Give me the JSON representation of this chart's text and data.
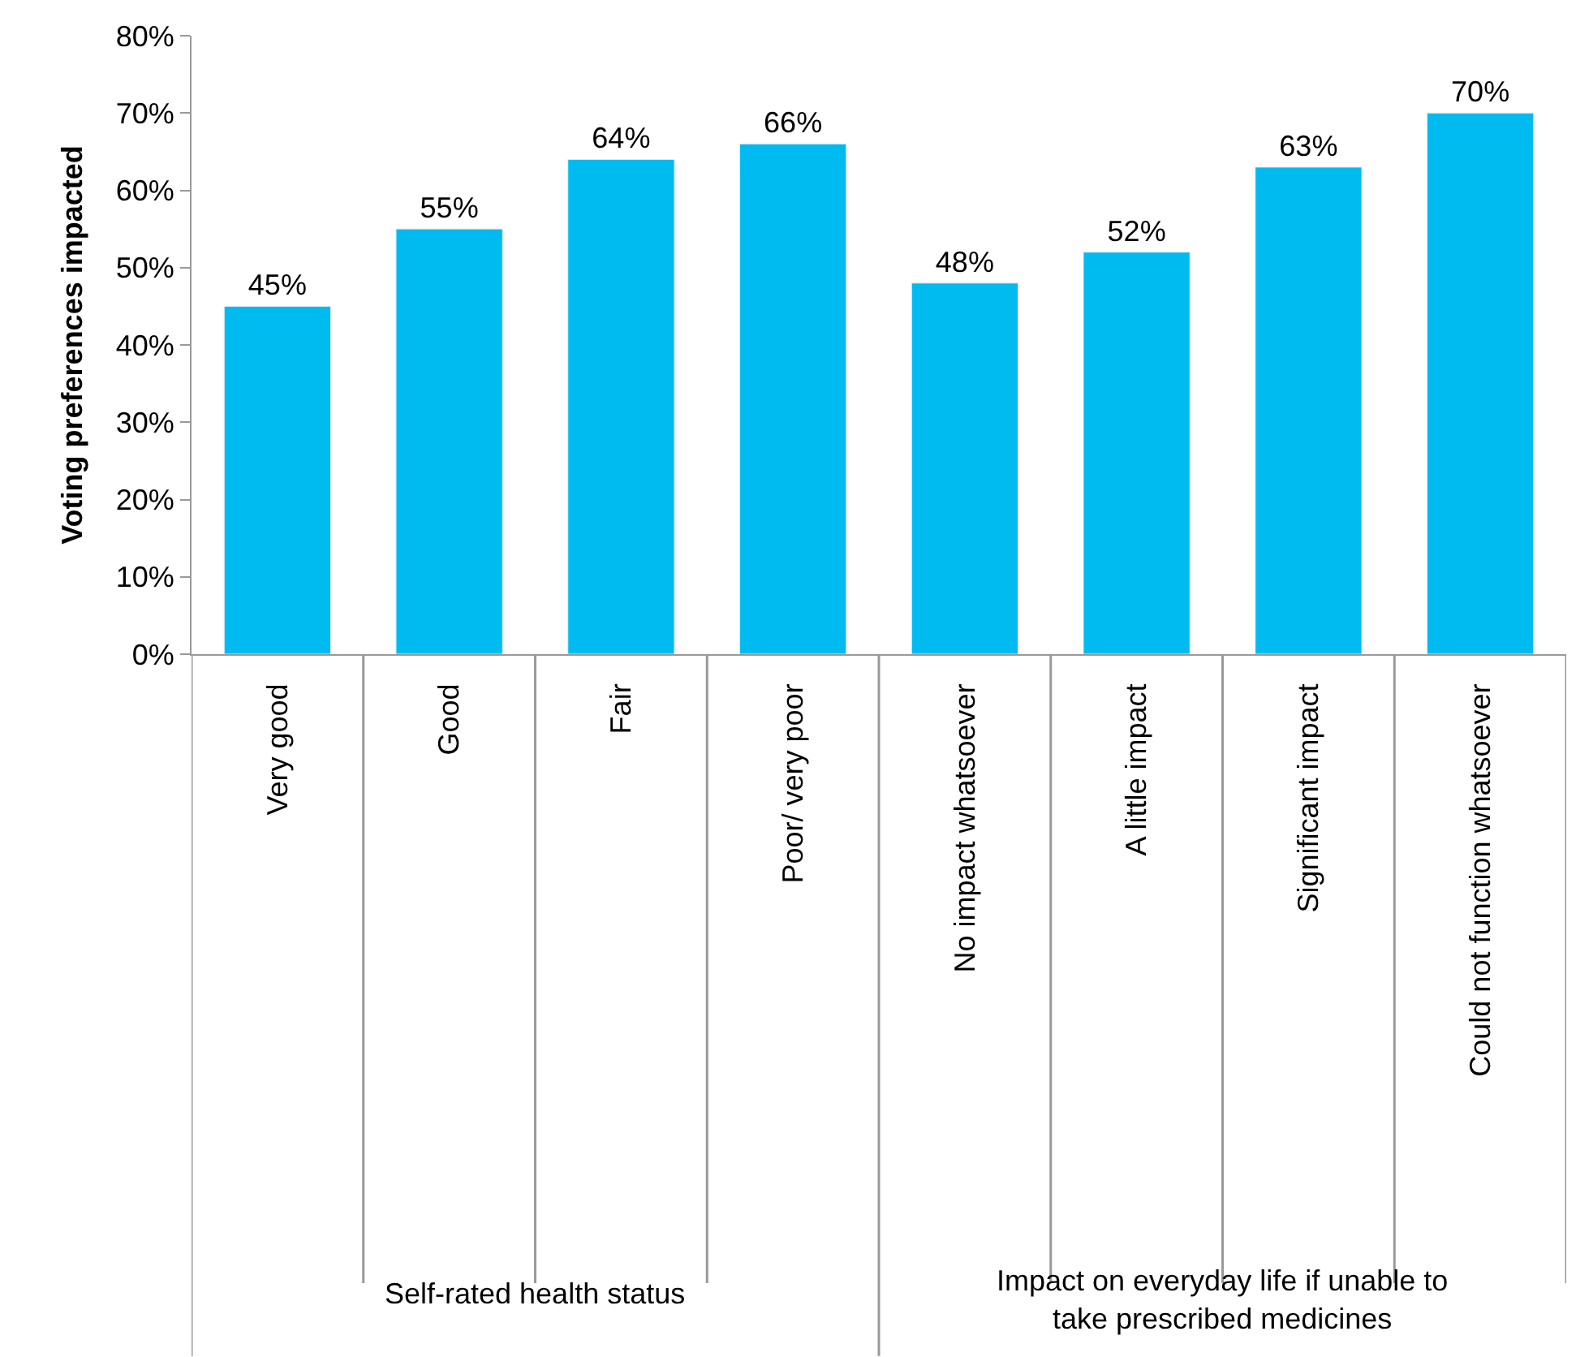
{
  "chart_data": {
    "type": "bar",
    "ylabel": "Voting preferences impacted",
    "categories": [
      "Very good",
      "Good",
      "Fair",
      "Poor/ very poor",
      "No impact whatsoever",
      "A little impact",
      "Significant impact",
      "Could not function whatsoever"
    ],
    "values": [
      45,
      55,
      64,
      66,
      48,
      52,
      63,
      70
    ],
    "value_labels": [
      "45%",
      "55%",
      "64%",
      "66%",
      "48%",
      "52%",
      "63%",
      "70%"
    ],
    "color": "#00bbf0",
    "ylim": [
      0,
      80
    ],
    "yticks": [
      {
        "value": 0,
        "label": "0%"
      },
      {
        "value": 10,
        "label": "10%"
      },
      {
        "value": 20,
        "label": "20%"
      },
      {
        "value": 30,
        "label": "30%"
      },
      {
        "value": 40,
        "label": "40%"
      },
      {
        "value": 50,
        "label": "50%"
      },
      {
        "value": 60,
        "label": "60%"
      },
      {
        "value": 70,
        "label": "70%"
      },
      {
        "value": 80,
        "label": "80%"
      }
    ],
    "legend": false,
    "annotations": [
      "Self-rated health status",
      "Impact on everyday life if unable to take prescribed medicines"
    ]
  }
}
